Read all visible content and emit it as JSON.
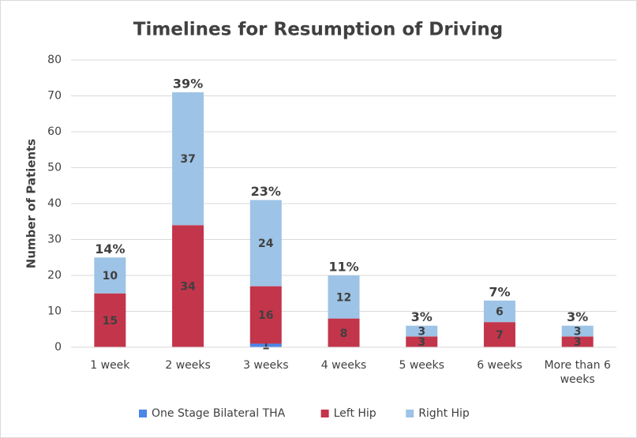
{
  "chart_data": {
    "type": "stacked_bar",
    "title": "Timelines for Resumption of Driving",
    "y_label": "Number of Patients",
    "categories": [
      "1 week",
      "2 weeks",
      "3 weeks",
      "4 weeks",
      "5 weeks",
      "6 weeks",
      "More than 6 weeks"
    ],
    "series": [
      {
        "name": "One Stage Bilateral THA",
        "color": "#4a86e8",
        "values": [
          0,
          0,
          1,
          0,
          0,
          0,
          0
        ]
      },
      {
        "name": "Left Hip",
        "color": "#c3354b",
        "values": [
          15,
          34,
          16,
          8,
          3,
          7,
          3
        ]
      },
      {
        "name": "Right Hip",
        "color": "#9dc3e6",
        "values": [
          10,
          37,
          24,
          12,
          3,
          6,
          3
        ]
      }
    ],
    "annotations": [
      "14%",
      "39%",
      "23%",
      "11%",
      "3%",
      "7%",
      "3%"
    ],
    "ylim": [
      0,
      80
    ],
    "yticks": [
      0,
      10,
      20,
      30,
      40,
      50,
      60,
      70,
      80
    ],
    "grid": true,
    "legend": "bottom"
  }
}
